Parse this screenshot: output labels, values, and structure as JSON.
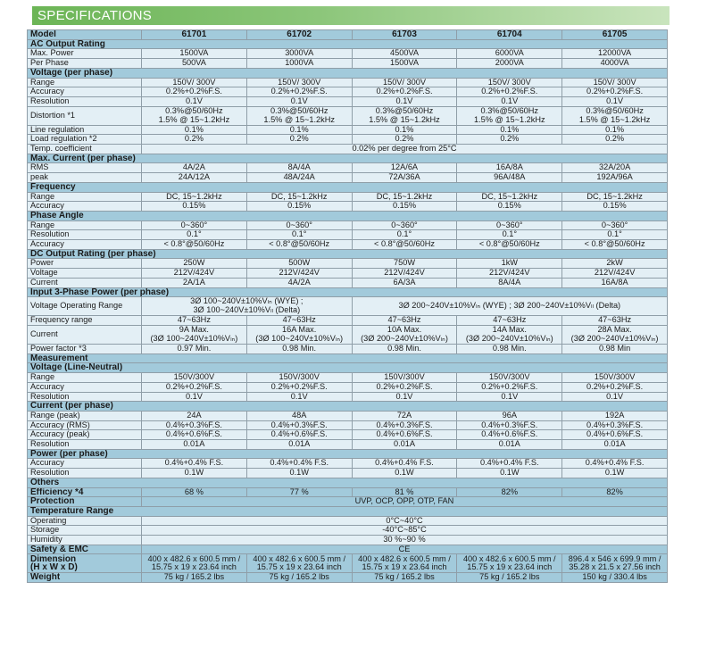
{
  "title": "SPECIFICATIONS",
  "columns": [
    "Model",
    "61701",
    "61702",
    "61703",
    "61704",
    "61705"
  ],
  "rows": [
    {
      "type": "section",
      "label": "AC Output Rating"
    },
    {
      "type": "row",
      "label": "Max. Power",
      "cells": [
        {
          "v": "1500VA"
        },
        {
          "v": "3000VA"
        },
        {
          "v": "4500VA"
        },
        {
          "v": "6000VA"
        },
        {
          "v": "12000VA"
        }
      ]
    },
    {
      "type": "row",
      "label": "Per Phase",
      "cells": [
        {
          "v": "500VA"
        },
        {
          "v": "1000VA"
        },
        {
          "v": "1500VA"
        },
        {
          "v": "2000VA"
        },
        {
          "v": "4000VA"
        }
      ]
    },
    {
      "type": "section",
      "label": "Voltage (per phase)"
    },
    {
      "type": "row",
      "label": "Range",
      "cells": [
        {
          "v": "150V/ 300V"
        },
        {
          "v": "150V/ 300V"
        },
        {
          "v": "150V/ 300V"
        },
        {
          "v": "150V/ 300V"
        },
        {
          "v": "150V/ 300V"
        }
      ]
    },
    {
      "type": "row",
      "label": "Accuracy",
      "cells": [
        {
          "v": "0.2%+0.2%F.S."
        },
        {
          "v": "0.2%+0.2%F.S."
        },
        {
          "v": "0.2%+0.2%F.S."
        },
        {
          "v": "0.2%+0.2%F.S."
        },
        {
          "v": "0.2%+0.2%F.S."
        }
      ]
    },
    {
      "type": "row",
      "label": "Resolution",
      "cells": [
        {
          "v": "0.1V"
        },
        {
          "v": "0.1V"
        },
        {
          "v": "0.1V"
        },
        {
          "v": "0.1V"
        },
        {
          "v": "0.1V"
        }
      ]
    },
    {
      "type": "row",
      "double": true,
      "label": "Distortion *1",
      "cells": [
        {
          "v": "0.3%@50/60Hz\n1.5% @ 15~1.2kHz"
        },
        {
          "v": "0.3%@50/60Hz\n1.5% @ 15~1.2kHz"
        },
        {
          "v": "0.3%@50/60Hz\n1.5% @ 15~1.2kHz"
        },
        {
          "v": "0.3%@50/60Hz\n1.5% @ 15~1.2kHz"
        },
        {
          "v": "0.3%@50/60Hz\n1.5% @ 15~1.2kHz"
        }
      ]
    },
    {
      "type": "row",
      "label": "Line regulation",
      "cells": [
        {
          "v": "0.1%"
        },
        {
          "v": "0.1%"
        },
        {
          "v": "0.1%"
        },
        {
          "v": "0.1%"
        },
        {
          "v": "0.1%"
        }
      ]
    },
    {
      "type": "row",
      "label": "Load regulation *2",
      "cells": [
        {
          "v": "0.2%"
        },
        {
          "v": "0.2%"
        },
        {
          "v": "0.2%"
        },
        {
          "v": "0.2%"
        },
        {
          "v": "0.2%"
        }
      ]
    },
    {
      "type": "row",
      "label": "Temp. coefficient",
      "cells": [
        {
          "v": "0.02% per degree from 25°C",
          "span": 5
        }
      ]
    },
    {
      "type": "section",
      "label": "Max. Current (per phase)"
    },
    {
      "type": "row",
      "label": "RMS",
      "cells": [
        {
          "v": "4A/2A"
        },
        {
          "v": "8A/4A"
        },
        {
          "v": "12A/6A"
        },
        {
          "v": "16A/8A"
        },
        {
          "v": "32A/20A"
        }
      ]
    },
    {
      "type": "row",
      "label": "peak",
      "cells": [
        {
          "v": "24A/12A"
        },
        {
          "v": "48A/24A"
        },
        {
          "v": "72A/36A"
        },
        {
          "v": "96A/48A"
        },
        {
          "v": "192A/96A"
        }
      ]
    },
    {
      "type": "section",
      "label": "Frequency"
    },
    {
      "type": "row",
      "label": "Range",
      "cells": [
        {
          "v": "DC, 15~1.2kHz"
        },
        {
          "v": "DC, 15~1.2kHz"
        },
        {
          "v": "DC, 15~1.2kHz"
        },
        {
          "v": "DC, 15~1.2kHz"
        },
        {
          "v": "DC, 15~1.2kHz"
        }
      ]
    },
    {
      "type": "row",
      "label": "Accuracy",
      "cells": [
        {
          "v": "0.15%"
        },
        {
          "v": "0.15%"
        },
        {
          "v": "0.15%"
        },
        {
          "v": "0.15%"
        },
        {
          "v": "0.15%"
        }
      ]
    },
    {
      "type": "section",
      "label": "Phase Angle"
    },
    {
      "type": "row",
      "label": "Range",
      "cells": [
        {
          "v": "0~360°"
        },
        {
          "v": "0~360°"
        },
        {
          "v": "0~360°"
        },
        {
          "v": "0~360°"
        },
        {
          "v": "0~360°"
        }
      ]
    },
    {
      "type": "row",
      "label": "Resolution",
      "cells": [
        {
          "v": "0.1°"
        },
        {
          "v": "0.1°"
        },
        {
          "v": "0.1°"
        },
        {
          "v": "0.1°"
        },
        {
          "v": "0.1°"
        }
      ]
    },
    {
      "type": "row",
      "label": "Accuracy",
      "cells": [
        {
          "v": "< 0.8°@50/60Hz"
        },
        {
          "v": "< 0.8°@50/60Hz"
        },
        {
          "v": "< 0.8°@50/60Hz"
        },
        {
          "v": "< 0.8°@50/60Hz"
        },
        {
          "v": "< 0.8°@50/60Hz"
        }
      ]
    },
    {
      "type": "section",
      "label": "DC Output Rating (per phase)"
    },
    {
      "type": "row",
      "label": "Power",
      "cells": [
        {
          "v": "250W"
        },
        {
          "v": "500W"
        },
        {
          "v": "750W"
        },
        {
          "v": "1kW"
        },
        {
          "v": "2kW"
        }
      ]
    },
    {
      "type": "row",
      "label": "Voltage",
      "cells": [
        {
          "v": "212V/424V"
        },
        {
          "v": "212V/424V"
        },
        {
          "v": "212V/424V"
        },
        {
          "v": "212V/424V"
        },
        {
          "v": "212V/424V"
        }
      ]
    },
    {
      "type": "row",
      "label": "Current",
      "cells": [
        {
          "v": "2A/1A"
        },
        {
          "v": "4A/2A"
        },
        {
          "v": "6A/3A"
        },
        {
          "v": "8A/4A"
        },
        {
          "v": "16A/8A"
        }
      ]
    },
    {
      "type": "section",
      "label": "Input 3-Phase Power (per phase)"
    },
    {
      "type": "row",
      "double": true,
      "label": "Voltage Operating Range",
      "cells": [
        {
          "v": "3Ø 100~240V±10%Vₗₙ (WYE) ;\n3Ø 100~240V±10%Vₗₗ (Delta)",
          "span": 2
        },
        {
          "v": "3Ø 200~240V±10%Vₗₙ (WYE) ; 3Ø 200~240V±10%Vₗₗ (Delta)",
          "span": 3
        }
      ]
    },
    {
      "type": "row",
      "label": "Frequency range",
      "cells": [
        {
          "v": "47~63Hz"
        },
        {
          "v": "47~63Hz"
        },
        {
          "v": "47~63Hz"
        },
        {
          "v": "47~63Hz"
        },
        {
          "v": "47~63Hz"
        }
      ]
    },
    {
      "type": "row",
      "double": true,
      "label": "Current",
      "cells": [
        {
          "v": "9A Max.\n(3Ø 100~240V±10%Vₗₙ)"
        },
        {
          "v": "16A Max.\n(3Ø 100~240V±10%Vₗₙ)"
        },
        {
          "v": "10A Max.\n(3Ø 200~240V±10%Vₗₙ)"
        },
        {
          "v": "14A Max.\n(3Ø 200~240V±10%Vₗₙ)"
        },
        {
          "v": "28A Max.\n(3Ø 200~240V±10%Vₗₙ)"
        }
      ]
    },
    {
      "type": "row",
      "label": "Power factor *3",
      "cells": [
        {
          "v": "0.97 Min."
        },
        {
          "v": "0.98 Min."
        },
        {
          "v": "0.98 Min."
        },
        {
          "v": "0.98 Min."
        },
        {
          "v": "0.98 Min"
        }
      ]
    },
    {
      "type": "section",
      "label": "Measurement"
    },
    {
      "type": "section",
      "label": "Voltage (Line-Neutral)"
    },
    {
      "type": "row",
      "label": "Range",
      "cells": [
        {
          "v": "150V/300V"
        },
        {
          "v": "150V/300V"
        },
        {
          "v": "150V/300V"
        },
        {
          "v": "150V/300V"
        },
        {
          "v": "150V/300V"
        }
      ]
    },
    {
      "type": "row",
      "label": "Accuracy",
      "cells": [
        {
          "v": "0.2%+0.2%F.S."
        },
        {
          "v": "0.2%+0.2%F.S."
        },
        {
          "v": "0.2%+0.2%F.S."
        },
        {
          "v": "0.2%+0.2%F.S."
        },
        {
          "v": "0.2%+0.2%F.S."
        }
      ]
    },
    {
      "type": "row",
      "label": "Resolution",
      "cells": [
        {
          "v": "0.1V"
        },
        {
          "v": "0.1V"
        },
        {
          "v": "0.1V"
        },
        {
          "v": "0.1V"
        },
        {
          "v": "0.1V"
        }
      ]
    },
    {
      "type": "section",
      "label": "Current (per phase)"
    },
    {
      "type": "row",
      "label": "Range (peak)",
      "cells": [
        {
          "v": "24A"
        },
        {
          "v": "48A"
        },
        {
          "v": "72A"
        },
        {
          "v": "96A"
        },
        {
          "v": "192A"
        }
      ]
    },
    {
      "type": "row",
      "label": "Accuracy (RMS)",
      "cells": [
        {
          "v": "0.4%+0.3%F.S."
        },
        {
          "v": "0.4%+0.3%F.S."
        },
        {
          "v": "0.4%+0.3%F.S."
        },
        {
          "v": "0.4%+0.3%F.S."
        },
        {
          "v": "0.4%+0.3%F.S."
        }
      ]
    },
    {
      "type": "row",
      "label": "Accuracy (peak)",
      "cells": [
        {
          "v": "0.4%+0.6%F.S."
        },
        {
          "v": "0.4%+0.6%F.S."
        },
        {
          "v": "0.4%+0.6%F.S."
        },
        {
          "v": "0.4%+0.6%F.S."
        },
        {
          "v": "0.4%+0.6%F.S."
        }
      ]
    },
    {
      "type": "row",
      "label": "Resolution",
      "cells": [
        {
          "v": "0.01A"
        },
        {
          "v": "0.01A"
        },
        {
          "v": "0.01A"
        },
        {
          "v": "0.01A"
        },
        {
          "v": "0.01A"
        }
      ]
    },
    {
      "type": "section",
      "label": "Power (per phase)"
    },
    {
      "type": "row",
      "label": "Accuracy",
      "cells": [
        {
          "v": "0.4%+0.4% F.S."
        },
        {
          "v": "0.4%+0.4% F.S."
        },
        {
          "v": "0.4%+0.4% F.S."
        },
        {
          "v": "0.4%+0.4% F.S."
        },
        {
          "v": "0.4%+0.4% F.S."
        }
      ]
    },
    {
      "type": "row",
      "label": "Resolution",
      "cells": [
        {
          "v": "0.1W"
        },
        {
          "v": "0.1W"
        },
        {
          "v": "0.1W"
        },
        {
          "v": "0.1W"
        },
        {
          "v": "0.1W"
        }
      ]
    },
    {
      "type": "section",
      "label": "Others"
    },
    {
      "type": "blue",
      "label": "Efficiency *4",
      "cells": [
        {
          "v": "68 %"
        },
        {
          "v": "77 %"
        },
        {
          "v": "81 %"
        },
        {
          "v": "82%"
        },
        {
          "v": "82%"
        }
      ]
    },
    {
      "type": "blue",
      "label": "Protection",
      "cells": [
        {
          "v": "UVP, OCP, OPP, OTP, FAN",
          "span": 5
        }
      ]
    },
    {
      "type": "section",
      "label": "Temperature Range"
    },
    {
      "type": "row",
      "label": "Operating",
      "cells": [
        {
          "v": "0°C~40°C",
          "span": 5
        }
      ]
    },
    {
      "type": "row",
      "label": "Storage",
      "cells": [
        {
          "v": "-40°C~85°C",
          "span": 5
        }
      ]
    },
    {
      "type": "row",
      "label": "Humidity",
      "cells": [
        {
          "v": "30 %~90 %",
          "span": 5
        }
      ]
    },
    {
      "type": "blue",
      "label": "Safety & EMC",
      "cells": [
        {
          "v": "CE",
          "span": 5
        }
      ]
    },
    {
      "type": "blue",
      "double": true,
      "label": "Dimension\n(H x W x D)",
      "cells": [
        {
          "v": "400 x 482.6 x 600.5 mm /\n15.75 x 19 x 23.64 inch"
        },
        {
          "v": "400 x 482.6 x 600.5 mm /\n15.75 x 19 x 23.64 inch"
        },
        {
          "v": "400 x 482.6 x 600.5 mm /\n15.75 x 19 x 23.64 inch"
        },
        {
          "v": "400 x 482.6 x 600.5 mm /\n15.75 x 19 x 23.64 inch"
        },
        {
          "v": "896.4 x 546 x 699.9 mm /\n35.28 x 21.5 x 27.56 inch"
        }
      ]
    },
    {
      "type": "blue",
      "label": "Weight",
      "cells": [
        {
          "v": "75 kg / 165.2 lbs"
        },
        {
          "v": "75 kg / 165.2 lbs"
        },
        {
          "v": "75 kg / 165.2 lbs"
        },
        {
          "v": "75 kg / 165.2 lbs"
        },
        {
          "v": "150 kg / 330.4 lbs"
        }
      ]
    }
  ]
}
